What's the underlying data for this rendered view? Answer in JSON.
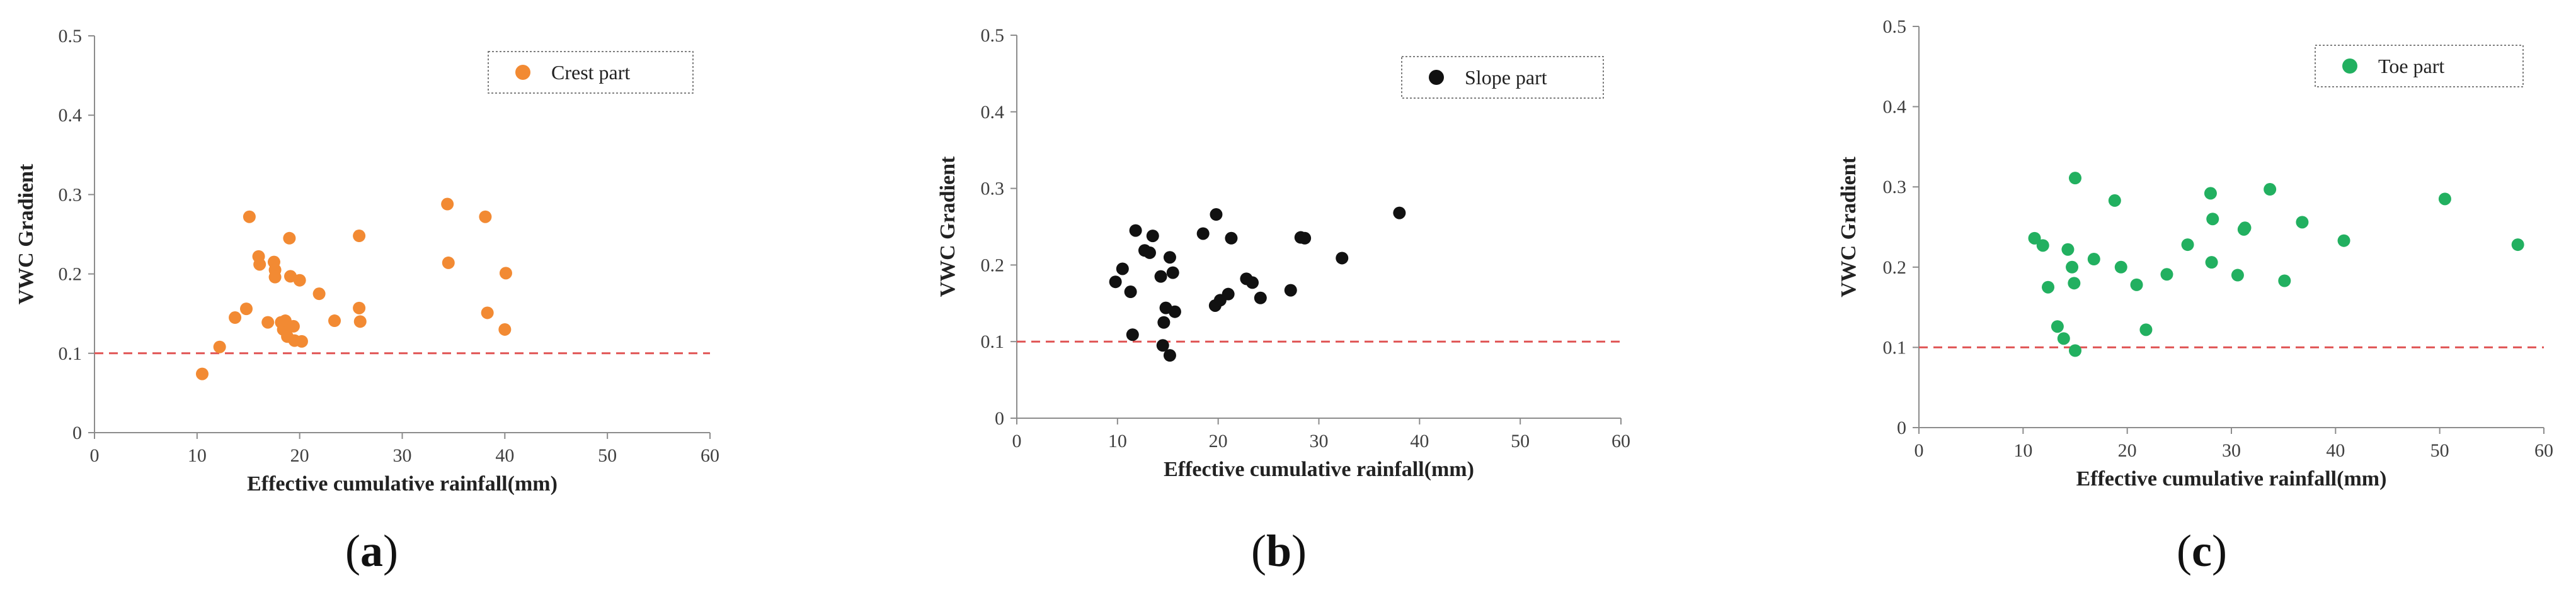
{
  "chart_data": [
    {
      "type": "scatter",
      "panel_label": "a",
      "xlabel": "Effective cumulative rainfall(mm)",
      "ylabel": "VWC Gradient",
      "xlim": [
        0,
        60
      ],
      "ylim": [
        0,
        0.5
      ],
      "x_ticks": [
        "0",
        "10",
        "20",
        "30",
        "40",
        "50",
        "60"
      ],
      "y_ticks": [
        "0",
        "0.1",
        "0.2",
        "0.3",
        "0.4",
        "0.5"
      ],
      "threshold": 0.1,
      "threshold_color": "#e05454",
      "legend_position": "top-right",
      "series": [
        {
          "name": "Crest part",
          "color": "#f28a33",
          "points": [
            [
              10.5,
              0.074
            ],
            [
              12.2,
              0.108
            ],
            [
              13.7,
              0.145
            ],
            [
              14.8,
              0.156
            ],
            [
              15.1,
              0.272
            ],
            [
              16.0,
              0.222
            ],
            [
              16.1,
              0.212
            ],
            [
              16.9,
              0.139
            ],
            [
              17.5,
              0.215
            ],
            [
              17.6,
              0.205
            ],
            [
              17.6,
              0.196
            ],
            [
              18.2,
              0.139
            ],
            [
              18.4,
              0.13
            ],
            [
              18.6,
              0.141
            ],
            [
              18.8,
              0.121
            ],
            [
              19.0,
              0.245
            ],
            [
              19.1,
              0.197
            ],
            [
              19.4,
              0.134
            ],
            [
              19.5,
              0.116
            ],
            [
              20.0,
              0.192
            ],
            [
              20.2,
              0.115
            ],
            [
              21.9,
              0.175
            ],
            [
              23.4,
              0.141
            ],
            [
              25.8,
              0.248
            ],
            [
              25.8,
              0.157
            ],
            [
              25.9,
              0.14
            ],
            [
              34.4,
              0.288
            ],
            [
              34.5,
              0.214
            ],
            [
              38.1,
              0.272
            ],
            [
              38.3,
              0.151
            ],
            [
              40.0,
              0.13
            ],
            [
              40.1,
              0.201
            ]
          ]
        }
      ]
    },
    {
      "type": "scatter",
      "panel_label": "b",
      "xlabel": "Effective cumulative rainfall(mm)",
      "ylabel": "VWC Gradient",
      "xlim": [
        0,
        60
      ],
      "ylim": [
        0,
        0.5
      ],
      "x_ticks": [
        "0",
        "10",
        "20",
        "30",
        "40",
        "50",
        "60"
      ],
      "y_ticks": [
        "0",
        "0.1",
        "0.2",
        "0.3",
        "0.4",
        "0.5"
      ],
      "threshold": 0.1,
      "threshold_color": "#e05454",
      "legend_position": "top-right",
      "series": [
        {
          "name": "Slope part",
          "color": "#111111",
          "points": [
            [
              9.8,
              0.178
            ],
            [
              10.5,
              0.195
            ],
            [
              11.3,
              0.165
            ],
            [
              11.5,
              0.109
            ],
            [
              11.8,
              0.245
            ],
            [
              12.7,
              0.219
            ],
            [
              13.2,
              0.216
            ],
            [
              13.5,
              0.238
            ],
            [
              14.3,
              0.185
            ],
            [
              14.5,
              0.095
            ],
            [
              14.6,
              0.125
            ],
            [
              14.8,
              0.144
            ],
            [
              15.2,
              0.082
            ],
            [
              15.2,
              0.21
            ],
            [
              15.5,
              0.19
            ],
            [
              15.7,
              0.139
            ],
            [
              18.5,
              0.241
            ],
            [
              19.8,
              0.266
            ],
            [
              19.7,
              0.147
            ],
            [
              20.2,
              0.154
            ],
            [
              21.0,
              0.162
            ],
            [
              21.3,
              0.235
            ],
            [
              22.8,
              0.182
            ],
            [
              23.4,
              0.177
            ],
            [
              24.2,
              0.157
            ],
            [
              27.2,
              0.167
            ],
            [
              28.2,
              0.236
            ],
            [
              28.6,
              0.235
            ],
            [
              32.3,
              0.209
            ],
            [
              38.0,
              0.268
            ]
          ]
        }
      ]
    },
    {
      "type": "scatter",
      "panel_label": "c",
      "xlabel": "Effective cumulative rainfall(mm)",
      "ylabel": "VWC Gradient",
      "xlim": [
        0,
        60
      ],
      "ylim": [
        0,
        0.5
      ],
      "x_ticks": [
        "0",
        "10",
        "20",
        "30",
        "40",
        "50",
        "60"
      ],
      "y_ticks": [
        "0",
        "0.1",
        "0.2",
        "0.3",
        "0.4",
        "0.5"
      ],
      "threshold": 0.1,
      "threshold_color": "#e05454",
      "legend_position": "top-right",
      "series": [
        {
          "name": "Toe part",
          "color": "#22b060",
          "points": [
            [
              11.1,
              0.236
            ],
            [
              11.9,
              0.227
            ],
            [
              12.4,
              0.175
            ],
            [
              13.3,
              0.126
            ],
            [
              13.9,
              0.111
            ],
            [
              14.3,
              0.222
            ],
            [
              14.7,
              0.2
            ],
            [
              14.9,
              0.18
            ],
            [
              15.0,
              0.096
            ],
            [
              15.0,
              0.311
            ],
            [
              16.8,
              0.21
            ],
            [
              18.8,
              0.283
            ],
            [
              19.4,
              0.2
            ],
            [
              20.9,
              0.178
            ],
            [
              21.8,
              0.122
            ],
            [
              23.8,
              0.191
            ],
            [
              25.8,
              0.228
            ],
            [
              28.0,
              0.292
            ],
            [
              28.2,
              0.26
            ],
            [
              28.1,
              0.206
            ],
            [
              30.6,
              0.19
            ],
            [
              31.2,
              0.247
            ],
            [
              31.3,
              0.249
            ],
            [
              33.7,
              0.297
            ],
            [
              35.1,
              0.183
            ],
            [
              36.8,
              0.256
            ],
            [
              40.8,
              0.233
            ],
            [
              50.5,
              0.285
            ],
            [
              57.5,
              0.228
            ]
          ]
        }
      ]
    }
  ]
}
